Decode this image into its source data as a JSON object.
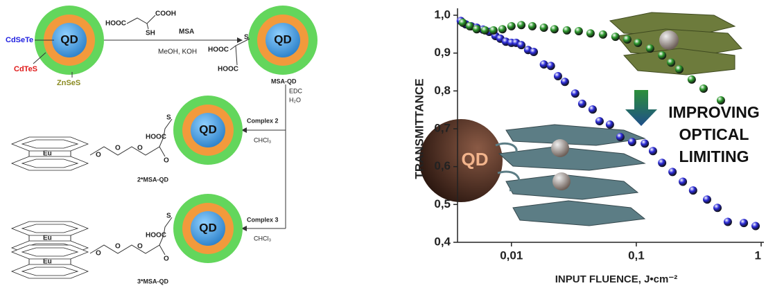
{
  "scheme": {
    "qd_labels": [
      "QD",
      "QD",
      "QD",
      "QD"
    ],
    "shells": [
      "CdSeTe",
      "CdTeS",
      "ZnSeS"
    ],
    "reagent": {
      "acid_left": "HOOC",
      "acid_right": "COOH",
      "thiol": "SH",
      "above_arrow": "MSA",
      "below_arrow": "MeOH, KOH"
    },
    "msa_qd": {
      "s": "S",
      "hooc_top": "HOOC",
      "hooc_bottom": "HOOC",
      "label": "MSA-QD"
    },
    "step2": {
      "reagent1": "EDC",
      "reagent2": "H₂O"
    },
    "complex2": {
      "reagent": "Complex 2",
      "solvent": "CHCl₃",
      "s": "S",
      "hooc": "HOOC",
      "o": [
        "O",
        "O",
        "O",
        "O"
      ],
      "metal": "Eu",
      "label": "2*MSA-QD"
    },
    "complex3": {
      "reagent": "Complex 3",
      "solvent": "CHCl₃",
      "s": "S",
      "hooc": "HOOC",
      "o": [
        "O",
        "O",
        "O",
        "O"
      ],
      "metals": [
        "Eu",
        "Eu"
      ],
      "label": "3*MSA-QD"
    }
  },
  "chart_data": {
    "type": "scatter",
    "x_log": true,
    "xlabel": "INPUT FLUENCE, J•cm⁻²",
    "ylabel": "TRANSMITTANCE",
    "annotations": [
      "IMPROVING",
      "OPTICAL",
      "LIMITING"
    ],
    "sphere_label": "QD",
    "xlim": [
      0.0037,
      1
    ],
    "ylim": [
      0.4,
      1.0
    ],
    "xticks": [
      {
        "value": 0.01,
        "label": "0,01"
      },
      {
        "value": 0.1,
        "label": "0,1"
      },
      1
    ],
    "yticks": [
      {
        "value": 0.4,
        "label": "0,4"
      },
      {
        "value": 0.5,
        "label": "0,5"
      },
      {
        "value": 0.6,
        "label": "0,6"
      },
      {
        "value": 0.7,
        "label": "0,7"
      },
      {
        "value": 0.8,
        "label": "0,8"
      },
      {
        "value": 0.9,
        "label": "0,9"
      },
      {
        "value": 1.0,
        "label": "1,0"
      }
    ],
    "series": [
      {
        "color": "#2a2ad8",
        "x": [
          0.00393,
          0.0043,
          0.00476,
          0.00527,
          0.00592,
          0.00664,
          0.00745,
          0.00815,
          0.00903,
          0.01,
          0.0109,
          0.012,
          0.0136,
          0.0151,
          0.0182,
          0.0207,
          0.0236,
          0.0268,
          0.0324,
          0.0369,
          0.0447,
          0.0508,
          0.0615,
          0.0745,
          0.0926,
          0.117,
          0.136,
          0.161,
          0.195,
          0.236,
          0.285,
          0.369,
          0.447,
          0.541,
          0.727,
          0.903
        ],
        "values": [
          0.985,
          0.976,
          0.971,
          0.967,
          0.962,
          0.956,
          0.945,
          0.938,
          0.93,
          0.927,
          0.927,
          0.921,
          0.908,
          0.903,
          0.87,
          0.866,
          0.839,
          0.824,
          0.793,
          0.766,
          0.751,
          0.72,
          0.711,
          0.678,
          0.665,
          0.661,
          0.641,
          0.61,
          0.586,
          0.56,
          0.537,
          0.513,
          0.491,
          0.454,
          0.451,
          0.443
        ]
      },
      {
        "color": "#2e9a2e",
        "x": [
          0.00408,
          0.00464,
          0.00527,
          0.00615,
          0.00718,
          0.00847,
          0.01,
          0.012,
          0.0147,
          0.0182,
          0.0221,
          0.0278,
          0.0346,
          0.043,
          0.0541,
          0.0681,
          0.0847,
          0.103,
          0.129,
          0.161,
          0.19,
          0.221,
          0.278,
          0.346,
          0.476
        ],
        "values": [
          0.98,
          0.971,
          0.963,
          0.96,
          0.96,
          0.963,
          0.971,
          0.974,
          0.971,
          0.967,
          0.963,
          0.96,
          0.958,
          0.952,
          0.949,
          0.943,
          0.936,
          0.927,
          0.912,
          0.894,
          0.875,
          0.857,
          0.83,
          0.806,
          0.775
        ]
      }
    ]
  }
}
